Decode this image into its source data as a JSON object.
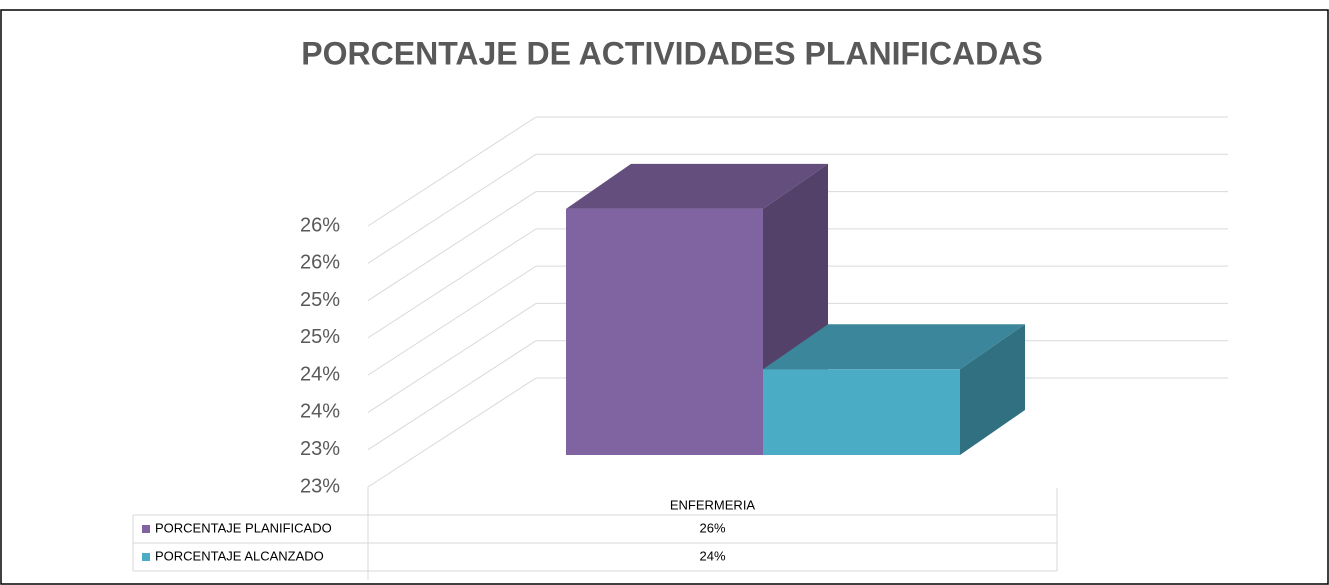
{
  "chart_data": {
    "type": "bar3d",
    "title": "PORCENTAJE DE ACTIVIDADES PLANIFICADAS",
    "categories": [
      "ENFERMERIA"
    ],
    "series": [
      {
        "name": "PORCENTAJE PLANIFICADO",
        "color": "#8064a2",
        "values": [
          25.8
        ],
        "value_labels": [
          "26%"
        ]
      },
      {
        "name": "PORCENTAJE ALCANZADO",
        "color": "#4bacc6",
        "values": [
          23.65
        ],
        "value_labels": [
          "24%"
        ]
      }
    ],
    "ylim": [
      22.5,
      26
    ],
    "yticks": [
      {
        "value": 22.5,
        "label": "23%"
      },
      {
        "value": 23,
        "label": "23%"
      },
      {
        "value": 23.5,
        "label": "24%"
      },
      {
        "value": 24,
        "label": "24%"
      },
      {
        "value": 24.5,
        "label": "25%"
      },
      {
        "value": 25,
        "label": "25%"
      },
      {
        "value": 25.5,
        "label": "26%"
      },
      {
        "value": 26,
        "label": "26%"
      }
    ],
    "grid": true,
    "legend": "bottom"
  }
}
